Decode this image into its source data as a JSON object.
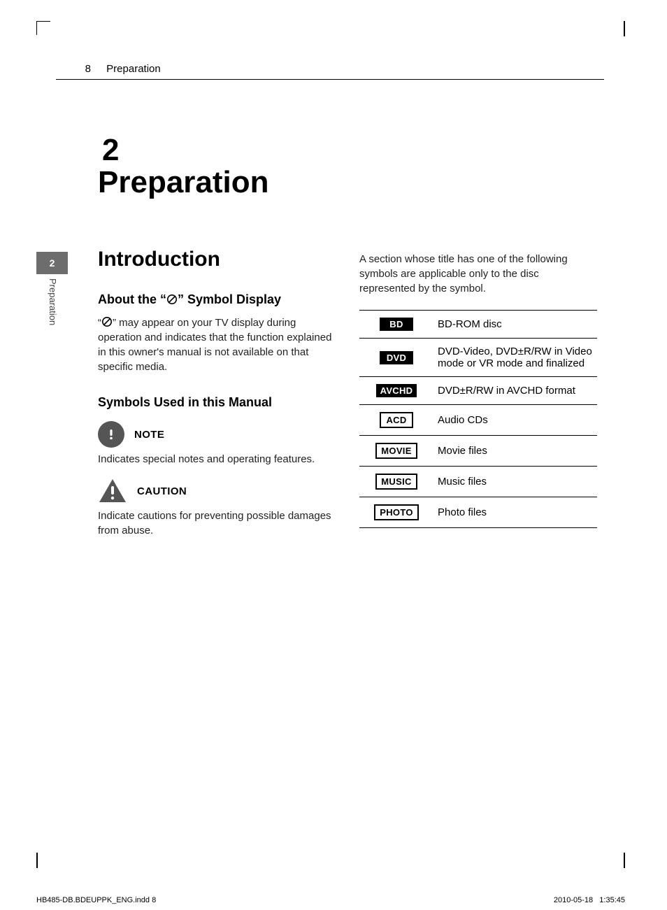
{
  "page_number": "8",
  "running_section": "Preparation",
  "side_tab": {
    "number": "2",
    "label": "Preparation"
  },
  "chapter": {
    "number": "2",
    "title": "Preparation"
  },
  "section_heading": "Introduction",
  "sub1": {
    "heading_pre": "About the “",
    "heading_post": "” Symbol Display",
    "body_pre": "“",
    "body_post": "” may appear on your TV display during operation and indicates that the function explained in this owner's manual is not available on that specific media."
  },
  "sub2": {
    "heading": "Symbols Used in this Manual",
    "note_label": "NOTE",
    "note_body": "Indicates special notes and operating features.",
    "caution_label": "CAUTION",
    "caution_body": "Indicate cautions for preventing possible damages from abuse."
  },
  "right_intro": "A section whose title has one of the following symbols are applicable only to the disc represented by the symbol.",
  "media": [
    {
      "badge": "BD",
      "style": "solid",
      "desc": "BD-ROM disc"
    },
    {
      "badge": "DVD",
      "style": "solid",
      "desc": "DVD-Video, DVD±R/RW in Video mode or VR mode and finalized"
    },
    {
      "badge": "AVCHD",
      "style": "solid",
      "desc": "DVD±R/RW in AVCHD format"
    },
    {
      "badge": "ACD",
      "style": "outline",
      "desc": "Audio CDs"
    },
    {
      "badge": "MOVIE",
      "style": "outline",
      "desc": "Movie files"
    },
    {
      "badge": "MUSIC",
      "style": "outline",
      "desc": "Music files"
    },
    {
      "badge": "PHOTO",
      "style": "outline",
      "desc": "Photo files"
    }
  ],
  "footer": {
    "file": "HB485-DB.BDEUPPK_ENG.indd   8",
    "date": "2010-05-18",
    "time": "1:35:45"
  },
  "colors": {
    "tab_bg": "#6d6d6d",
    "text": "#000000",
    "body_text": "#222222",
    "side_text": "#444444"
  }
}
